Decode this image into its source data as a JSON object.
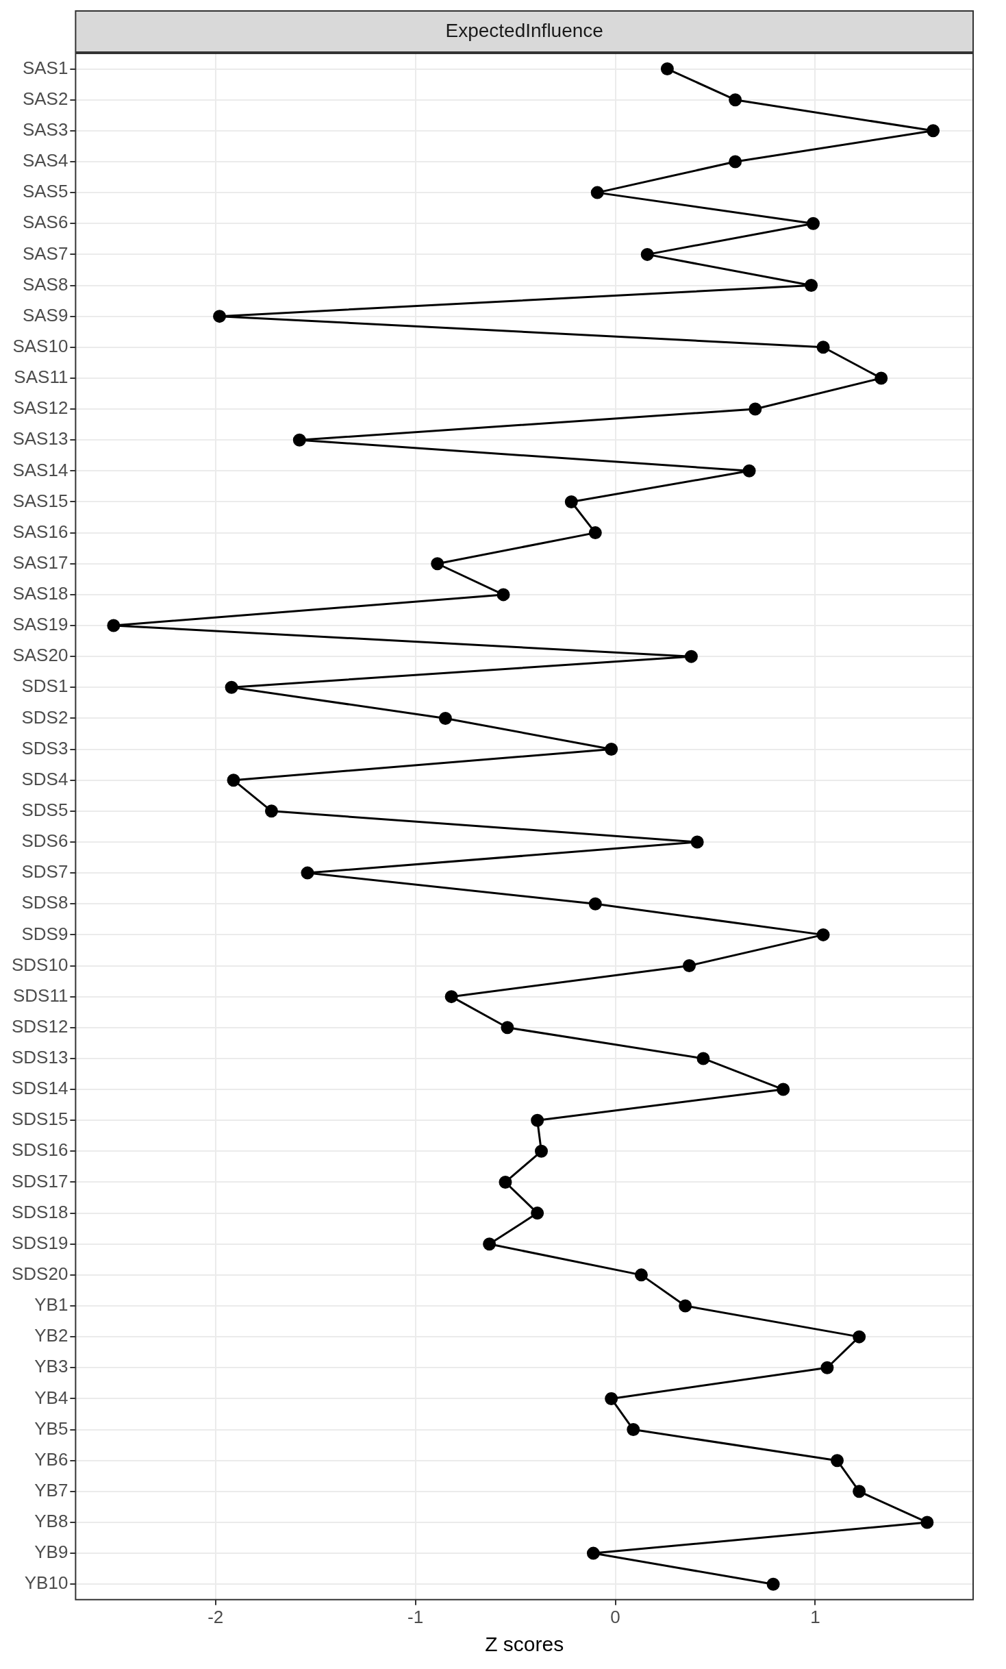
{
  "chart_data": {
    "type": "line",
    "title": "ExpectedInfluence",
    "xlabel": "Z scores",
    "orientation": "horizontal",
    "categories": [
      "SAS1",
      "SAS2",
      "SAS3",
      "SAS4",
      "SAS5",
      "SAS6",
      "SAS7",
      "SAS8",
      "SAS9",
      "SAS10",
      "SAS11",
      "SAS12",
      "SAS13",
      "SAS14",
      "SAS15",
      "SAS16",
      "SAS17",
      "SAS18",
      "SAS19",
      "SAS20",
      "SDS1",
      "SDS2",
      "SDS3",
      "SDS4",
      "SDS5",
      "SDS6",
      "SDS7",
      "SDS8",
      "SDS9",
      "SDS10",
      "SDS11",
      "SDS12",
      "SDS13",
      "SDS14",
      "SDS15",
      "SDS16",
      "SDS17",
      "SDS18",
      "SDS19",
      "SDS20",
      "YB1",
      "YB2",
      "YB3",
      "YB4",
      "YB5",
      "YB6",
      "YB7",
      "YB8",
      "YB9",
      "YB10"
    ],
    "series": [
      {
        "color": "#000000",
        "values": [
          0.26,
          0.6,
          1.59,
          0.6,
          -0.09,
          0.99,
          0.16,
          0.98,
          -1.98,
          1.04,
          1.33,
          0.7,
          -1.58,
          0.67,
          -0.22,
          -0.1,
          -0.89,
          -0.56,
          -2.51,
          0.38,
          -1.92,
          -0.85,
          -0.02,
          -1.91,
          -1.72,
          0.41,
          -1.54,
          -0.1,
          1.04,
          0.37,
          -0.82,
          -0.54,
          0.44,
          0.84,
          -0.39,
          -0.37,
          -0.55,
          -0.39,
          -0.63,
          0.13,
          0.35,
          1.22,
          1.06,
          -0.02,
          0.09,
          1.11,
          1.22,
          1.56,
          -0.11,
          0.79
        ]
      }
    ],
    "xlim": [
      -2.7,
      1.79
    ],
    "xticks": [
      -2,
      -1,
      0,
      1
    ],
    "grid": true,
    "marker": "circle",
    "line_style": "solid",
    "legend": false
  }
}
